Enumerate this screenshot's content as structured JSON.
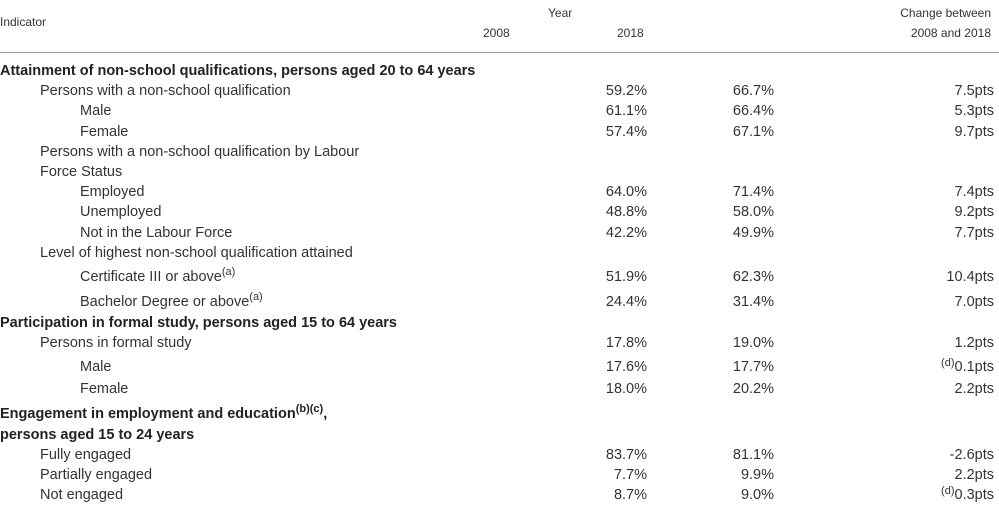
{
  "header": {
    "indicator": "Indicator",
    "year": "Year",
    "y2008": "2008",
    "y2018": "2018",
    "change_line1": "Change between",
    "change_line2": "2008 and 2018"
  },
  "rows": {
    "s1": "Attainment of non-school qualifications, persons aged 20 to 64 years",
    "r1": {
      "label": "Persons with a non-school qualification",
      "v2008": "59.2%",
      "v2018": "66.7%",
      "change": "7.5pts"
    },
    "r2": {
      "label": "Male",
      "v2008": "61.1%",
      "v2018": "66.4%",
      "change": "5.3pts"
    },
    "r3": {
      "label": "Female",
      "v2008": "57.4%",
      "v2018": "67.1%",
      "change": "9.7pts"
    },
    "r4a": "Persons with a non-school qualification by Labour",
    "r4b": "Force Status",
    "r5": {
      "label": "Employed",
      "v2008": "64.0%",
      "v2018": "71.4%",
      "change": "7.4pts"
    },
    "r6": {
      "label": "Unemployed",
      "v2008": "48.8%",
      "v2018": "58.0%",
      "change": "9.2pts"
    },
    "r7": {
      "label": "Not in the Labour Force",
      "v2008": "42.2%",
      "v2018": "49.9%",
      "change": "7.7pts"
    },
    "r8": "Level of highest non-school qualification attained",
    "r9": {
      "label": "Certificate III or above",
      "note": "(a)",
      "v2008": "51.9%",
      "v2018": "62.3%",
      "change": "10.4pts"
    },
    "r10": {
      "label": "Bachelor Degree or above",
      "note": "(a)",
      "v2008": "24.4%",
      "v2018": "31.4%",
      "change": "7.0pts"
    },
    "s2": "Participation in formal study, persons aged 15 to 64 years",
    "r11": {
      "label": "Persons in formal study",
      "v2008": "17.8%",
      "v2018": "19.0%",
      "change": "1.2pts"
    },
    "r12": {
      "label": "Male",
      "v2008": "17.6%",
      "v2018": "17.7%",
      "change_note": "(d)",
      "change": "0.1pts"
    },
    "r13": {
      "label": "Female",
      "v2008": "18.0%",
      "v2018": "20.2%",
      "change": "2.2pts"
    },
    "s3a": "Engagement in employment and education",
    "s3note": "(b)(c)",
    "s3comma": ",",
    "s3b": "persons aged 15 to 24 years",
    "r14": {
      "label": "Fully engaged",
      "v2008": "83.7%",
      "v2018": "81.1%",
      "change": "-2.6pts"
    },
    "r15": {
      "label": "Partially engaged",
      "v2008": "7.7%",
      "v2018": "9.9%",
      "change": "2.2pts"
    },
    "r16": {
      "label": "Not engaged",
      "v2008": "8.7%",
      "v2018": "9.0%",
      "change_note": "(d)",
      "change": "0.3pts"
    }
  }
}
